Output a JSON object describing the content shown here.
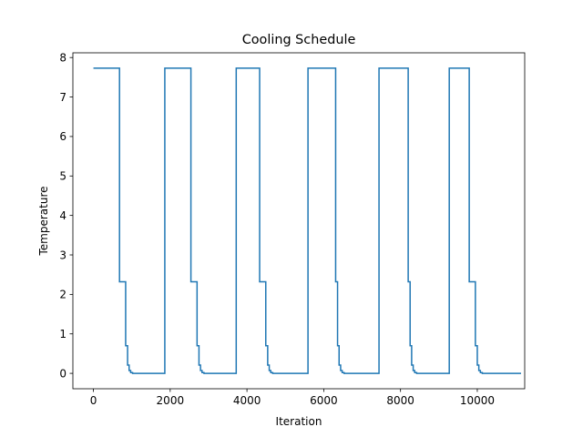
{
  "chart_data": {
    "type": "line",
    "title": "Cooling Schedule",
    "xlabel": "Iteration",
    "ylabel": "Temperature",
    "xlim": [
      -535,
      11235
    ],
    "ylim": [
      -0.39,
      8.12
    ],
    "x_ticks": [
      0,
      2000,
      4000,
      6000,
      8000,
      10000
    ],
    "x_tick_labels": [
      "0",
      "2000",
      "4000",
      "6000",
      "8000",
      "10000"
    ],
    "y_ticks": [
      0,
      1,
      2,
      3,
      4,
      5,
      6,
      7,
      8
    ],
    "y_tick_labels": [
      "0",
      "1",
      "2",
      "3",
      "4",
      "5",
      "6",
      "7",
      "8"
    ],
    "grid": false,
    "series": [
      {
        "color": "#1f77b4",
        "step_points": [
          [
            0,
            7.73
          ],
          [
            680,
            7.73
          ],
          [
            680,
            2.32
          ],
          [
            840,
            2.32
          ],
          [
            840,
            0.7
          ],
          [
            890,
            0.7
          ],
          [
            890,
            0.21
          ],
          [
            930,
            0.21
          ],
          [
            930,
            0.07
          ],
          [
            970,
            0.07
          ],
          [
            970,
            0.02
          ],
          [
            1020,
            0.02
          ],
          [
            1020,
            0.0
          ],
          [
            1860,
            0.0
          ],
          [
            1860,
            7.73
          ],
          [
            2540,
            7.73
          ],
          [
            2540,
            2.32
          ],
          [
            2700,
            2.32
          ],
          [
            2700,
            0.7
          ],
          [
            2750,
            0.7
          ],
          [
            2750,
            0.21
          ],
          [
            2790,
            0.21
          ],
          [
            2790,
            0.07
          ],
          [
            2830,
            0.07
          ],
          [
            2830,
            0.02
          ],
          [
            2880,
            0.02
          ],
          [
            2880,
            0.0
          ],
          [
            3720,
            0.0
          ],
          [
            3720,
            7.73
          ],
          [
            4330,
            7.73
          ],
          [
            4330,
            2.32
          ],
          [
            4490,
            2.32
          ],
          [
            4490,
            0.7
          ],
          [
            4540,
            0.7
          ],
          [
            4540,
            0.21
          ],
          [
            4580,
            0.21
          ],
          [
            4580,
            0.07
          ],
          [
            4620,
            0.07
          ],
          [
            4620,
            0.02
          ],
          [
            4670,
            0.02
          ],
          [
            4670,
            0.0
          ],
          [
            5590,
            0.0
          ],
          [
            5590,
            7.73
          ],
          [
            6310,
            7.73
          ],
          [
            6310,
            2.32
          ],
          [
            6360,
            2.32
          ],
          [
            6360,
            0.7
          ],
          [
            6400,
            0.7
          ],
          [
            6400,
            0.21
          ],
          [
            6440,
            0.21
          ],
          [
            6440,
            0.07
          ],
          [
            6480,
            0.07
          ],
          [
            6480,
            0.02
          ],
          [
            6530,
            0.02
          ],
          [
            6530,
            0.0
          ],
          [
            7440,
            0.0
          ],
          [
            7440,
            7.73
          ],
          [
            8200,
            7.73
          ],
          [
            8200,
            2.32
          ],
          [
            8250,
            2.32
          ],
          [
            8250,
            0.7
          ],
          [
            8290,
            0.7
          ],
          [
            8290,
            0.21
          ],
          [
            8330,
            0.21
          ],
          [
            8330,
            0.07
          ],
          [
            8370,
            0.07
          ],
          [
            8370,
            0.02
          ],
          [
            8420,
            0.02
          ],
          [
            8420,
            0.0
          ],
          [
            9270,
            0.0
          ],
          [
            9270,
            7.73
          ],
          [
            9790,
            7.73
          ],
          [
            9790,
            2.32
          ],
          [
            9950,
            2.32
          ],
          [
            9950,
            0.7
          ],
          [
            10000,
            0.7
          ],
          [
            10000,
            0.21
          ],
          [
            10040,
            0.21
          ],
          [
            10040,
            0.07
          ],
          [
            10080,
            0.07
          ],
          [
            10080,
            0.02
          ],
          [
            10130,
            0.02
          ],
          [
            10130,
            0.0
          ],
          [
            11140,
            0.0
          ]
        ]
      }
    ]
  }
}
